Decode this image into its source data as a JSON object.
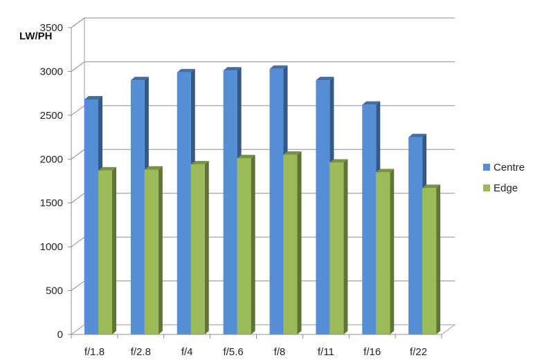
{
  "chart_data": {
    "type": "bar",
    "style": "3d-clustered-column",
    "title": "",
    "xlabel": "",
    "ylabel": "LW/PH",
    "ylim": [
      0,
      3500
    ],
    "yticks": [
      "0",
      "500",
      "1000",
      "1500",
      "2000",
      "2500",
      "3000",
      "3500"
    ],
    "grid": true,
    "legend_position": "right",
    "categories": [
      "f/1.8",
      "f/2.8",
      "f/4",
      "f/5.6",
      "f/8",
      "f/11",
      "f/16",
      "f/22"
    ],
    "series": [
      {
        "name": "Centre",
        "color": "#558ED5",
        "values": [
          2680,
          2900,
          2990,
          3010,
          3030,
          2900,
          2620,
          2250
        ]
      },
      {
        "name": "Edge",
        "color": "#9BBB59",
        "values": [
          1870,
          1880,
          1940,
          2010,
          2050,
          1960,
          1850,
          1670
        ]
      }
    ]
  }
}
